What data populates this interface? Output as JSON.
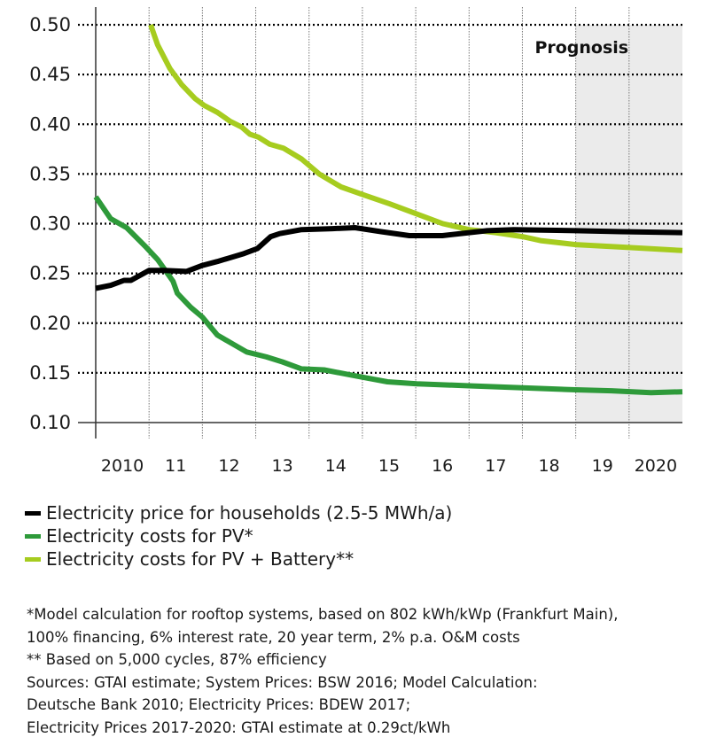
{
  "chart_data": {
    "type": "line",
    "title": "",
    "xlabel": "",
    "ylabel": "",
    "ylim": [
      0.1,
      0.5
    ],
    "yticks": [
      "0.50",
      "0.45",
      "0.40",
      "0.35",
      "0.30",
      "0.25",
      "0.20",
      "0.15",
      "0.10"
    ],
    "ytick_values": [
      0.5,
      0.45,
      0.4,
      0.35,
      0.3,
      0.25,
      0.2,
      0.15,
      0.1
    ],
    "xlim": [
      2010,
      2021
    ],
    "xtick_labels": [
      "2010",
      "11",
      "12",
      "13",
      "14",
      "15",
      "16",
      "17",
      "18",
      "19",
      "2020"
    ],
    "grid": true,
    "annotation": {
      "text": "Prognosis",
      "shaded_from": 2019,
      "shaded_to": 2021
    },
    "series": [
      {
        "name": "Electricity price for households (2.5-5 MWh/a)",
        "color": "#000000",
        "x": [
          2010.0,
          2010.28,
          2010.53,
          2010.66,
          2011.0,
          2011.28,
          2011.7,
          2012.0,
          2012.28,
          2012.78,
          2013.03,
          2013.28,
          2013.45,
          2013.86,
          2014.44,
          2014.86,
          2015.35,
          2015.88,
          2016.5,
          2017.34,
          2017.84,
          2019.0,
          2019.84,
          2021.0
        ],
        "values": [
          0.235,
          0.238,
          0.243,
          0.243,
          0.253,
          0.253,
          0.252,
          0.258,
          0.262,
          0.27,
          0.275,
          0.287,
          0.29,
          0.294,
          0.295,
          0.296,
          0.292,
          0.288,
          0.288,
          0.293,
          0.294,
          0.293,
          0.292,
          0.291
        ]
      },
      {
        "name": "Electricity costs for PV*",
        "color": "#2e9a3a",
        "x": [
          2010.0,
          2010.28,
          2010.58,
          2010.95,
          2011.16,
          2011.45,
          2011.53,
          2011.78,
          2012.0,
          2012.28,
          2012.57,
          2012.83,
          2013.2,
          2013.5,
          2013.86,
          2014.28,
          2014.86,
          2015.47,
          2016.02,
          2017.0,
          2018.0,
          2019.0,
          2019.67,
          2020.41,
          2021.0
        ],
        "values": [
          0.327,
          0.305,
          0.296,
          0.276,
          0.264,
          0.242,
          0.23,
          0.216,
          0.206,
          0.188,
          0.179,
          0.171,
          0.166,
          0.161,
          0.154,
          0.153,
          0.147,
          0.141,
          0.139,
          0.137,
          0.135,
          0.133,
          0.132,
          0.13,
          0.131
        ]
      },
      {
        "name": "Electricity costs for PV + Battery**",
        "color": "#a6cc1f",
        "x": [
          2011.03,
          2011.16,
          2011.39,
          2011.61,
          2011.86,
          2012.03,
          2012.28,
          2012.52,
          2012.74,
          2012.89,
          2013.05,
          2013.26,
          2013.52,
          2013.86,
          2014.19,
          2014.6,
          2015.02,
          2015.51,
          2016.01,
          2016.51,
          2017.0,
          2017.5,
          2018.0,
          2018.34,
          2019.0,
          2020.0,
          2021.0
        ],
        "values": [
          0.5,
          0.48,
          0.456,
          0.44,
          0.426,
          0.419,
          0.412,
          0.403,
          0.397,
          0.39,
          0.387,
          0.38,
          0.376,
          0.365,
          0.35,
          0.337,
          0.329,
          0.32,
          0.31,
          0.3,
          0.294,
          0.291,
          0.287,
          0.283,
          0.279,
          0.276,
          0.273
        ]
      }
    ]
  },
  "legend": {
    "items": [
      {
        "label": "Electricity price for households (2.5-5 MWh/a)",
        "color": "#000000"
      },
      {
        "label": "Electricity costs for PV*",
        "color": "#2e9a3a"
      },
      {
        "label": "Electricity costs for PV + Battery**",
        "color": "#a6cc1f"
      }
    ]
  },
  "footnotes": {
    "lines": [
      "*Model calculation for rooftop systems, based on 802 kWh/kWp (Frankfurt Main),",
      "100% financing, 6% interest rate, 20 year term, 2% p.a. O&M costs",
      "** Based on 5,000 cycles, 87% efficiency",
      "Sources: GTAI estimate; System Prices: BSW 2016; Model Calculation:",
      "Deutsche Bank 2010; Electricity Prices: BDEW 2017;",
      "Electricity Prices 2017-2020: GTAI estimate at 0.29ct/kWh"
    ]
  },
  "colors": {
    "prognosis_shade": "#ebebeb",
    "grid": "#000000",
    "axis": "#333333"
  }
}
